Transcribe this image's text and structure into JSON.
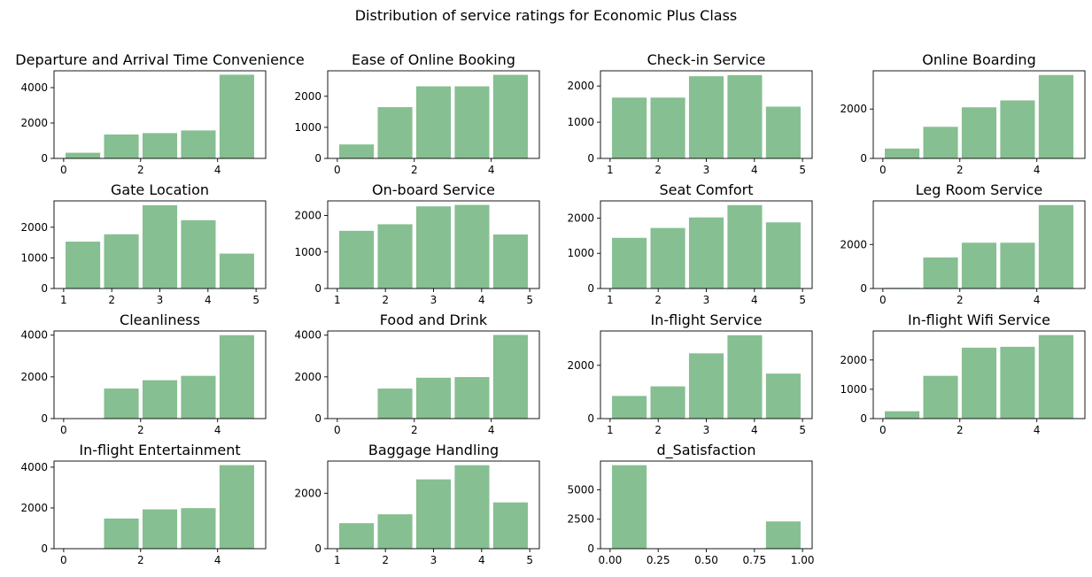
{
  "title": "Distribution of service ratings for Economic Plus Class",
  "colors": {
    "bar": "#86bf91",
    "axis": "#000000",
    "background": "#ffffff"
  },
  "chart_data": [
    {
      "type": "bar",
      "title": "Departure and Arrival Time Convenience",
      "bins": [
        [
          0,
          1
        ],
        [
          1,
          2
        ],
        [
          2,
          3
        ],
        [
          3,
          4
        ],
        [
          4,
          5
        ]
      ],
      "values": [
        320,
        1350,
        1430,
        1580,
        4730
      ],
      "xlim": [
        -0.25,
        5.25
      ],
      "ylim": [
        0,
        4950
      ],
      "xticks": [
        0,
        2,
        4
      ],
      "xtick_labels": [
        "0",
        "2",
        "4"
      ],
      "yticks": [
        0,
        2000,
        4000
      ],
      "ytick_labels": [
        "0",
        "2000",
        "4000"
      ]
    },
    {
      "type": "bar",
      "title": "Ease of Online Booking",
      "bins": [
        [
          0,
          1
        ],
        [
          1,
          2
        ],
        [
          2,
          3
        ],
        [
          3,
          4
        ],
        [
          4,
          5
        ]
      ],
      "values": [
        450,
        1650,
        2320,
        2320,
        2690
      ],
      "xlim": [
        -0.25,
        5.25
      ],
      "ylim": [
        0,
        2820
      ],
      "xticks": [
        0,
        2,
        4
      ],
      "xtick_labels": [
        "0",
        "2",
        "4"
      ],
      "yticks": [
        0,
        1000,
        2000
      ],
      "ytick_labels": [
        "0",
        "1000",
        "2000"
      ]
    },
    {
      "type": "bar",
      "title": "Check-in Service",
      "bins": [
        [
          1,
          1.8
        ],
        [
          1.8,
          2.6
        ],
        [
          2.6,
          3.4
        ],
        [
          3.4,
          4.2
        ],
        [
          4.2,
          5
        ]
      ],
      "values": [
        1680,
        1680,
        2270,
        2300,
        1430
      ],
      "xlim": [
        0.8,
        5.2
      ],
      "ylim": [
        0,
        2420
      ],
      "xticks": [
        1,
        2,
        3,
        4,
        5
      ],
      "xtick_labels": [
        "1",
        "2",
        "3",
        "4",
        "5"
      ],
      "yticks": [
        0,
        1000,
        2000
      ],
      "ytick_labels": [
        "0",
        "1000",
        "2000"
      ]
    },
    {
      "type": "bar",
      "title": "Online Boarding",
      "bins": [
        [
          0,
          1
        ],
        [
          1,
          2
        ],
        [
          2,
          3
        ],
        [
          3,
          4
        ],
        [
          4,
          5
        ]
      ],
      "values": [
        400,
        1280,
        2070,
        2350,
        3380
      ],
      "xlim": [
        -0.25,
        5.25
      ],
      "ylim": [
        0,
        3550
      ],
      "xticks": [
        0,
        2,
        4
      ],
      "xtick_labels": [
        "0",
        "2",
        "4"
      ],
      "yticks": [
        0,
        2000
      ],
      "ytick_labels": [
        "0",
        "2000"
      ]
    },
    {
      "type": "bar",
      "title": "Gate Location",
      "bins": [
        [
          1,
          1.8
        ],
        [
          1.8,
          2.6
        ],
        [
          2.6,
          3.4
        ],
        [
          3.4,
          4.2
        ],
        [
          4.2,
          5
        ]
      ],
      "values": [
        1530,
        1770,
        2720,
        2230,
        1140
      ],
      "xlim": [
        0.8,
        5.2
      ],
      "ylim": [
        0,
        2860
      ],
      "xticks": [
        1,
        2,
        3,
        4,
        5
      ],
      "xtick_labels": [
        "1",
        "2",
        "3",
        "4",
        "5"
      ],
      "yticks": [
        0,
        1000,
        2000
      ],
      "ytick_labels": [
        "0",
        "1000",
        "2000"
      ]
    },
    {
      "type": "bar",
      "title": "On-board Service",
      "bins": [
        [
          1,
          1.8
        ],
        [
          1.8,
          2.6
        ],
        [
          2.6,
          3.4
        ],
        [
          3.4,
          4.2
        ],
        [
          4.2,
          5
        ]
      ],
      "values": [
        1580,
        1760,
        2250,
        2290,
        1480
      ],
      "xlim": [
        0.8,
        5.2
      ],
      "ylim": [
        0,
        2400
      ],
      "xticks": [
        1,
        2,
        3,
        4,
        5
      ],
      "xtick_labels": [
        "1",
        "2",
        "3",
        "4",
        "5"
      ],
      "yticks": [
        0,
        1000,
        2000
      ],
      "ytick_labels": [
        "0",
        "1000",
        "2000"
      ]
    },
    {
      "type": "bar",
      "title": "Seat Comfort",
      "bins": [
        [
          1,
          1.8
        ],
        [
          1.8,
          2.6
        ],
        [
          2.6,
          3.4
        ],
        [
          3.4,
          4.2
        ],
        [
          4.2,
          5
        ]
      ],
      "values": [
        1440,
        1720,
        2020,
        2370,
        1880
      ],
      "xlim": [
        0.8,
        5.2
      ],
      "ylim": [
        0,
        2490
      ],
      "xticks": [
        1,
        2,
        3,
        4,
        5
      ],
      "xtick_labels": [
        "1",
        "2",
        "3",
        "4",
        "5"
      ],
      "yticks": [
        0,
        1000,
        2000
      ],
      "ytick_labels": [
        "0",
        "1000",
        "2000"
      ]
    },
    {
      "type": "bar",
      "title": "Leg Room Service",
      "bins": [
        [
          0,
          1
        ],
        [
          1,
          2
        ],
        [
          2,
          3
        ],
        [
          3,
          4
        ],
        [
          4,
          5
        ]
      ],
      "values": [
        30,
        1410,
        2080,
        2080,
        3790
      ],
      "xlim": [
        -0.25,
        5.25
      ],
      "ylim": [
        0,
        3980
      ],
      "xticks": [
        0,
        2,
        4
      ],
      "xtick_labels": [
        "0",
        "2",
        "4"
      ],
      "yticks": [
        0,
        2000
      ],
      "ytick_labels": [
        "0",
        "2000"
      ]
    },
    {
      "type": "bar",
      "title": "Cleanliness",
      "bins": [
        [
          0,
          1
        ],
        [
          1,
          2
        ],
        [
          2,
          3
        ],
        [
          3,
          4
        ],
        [
          4,
          5
        ]
      ],
      "values": [
        0,
        1440,
        1840,
        2050,
        4000
      ],
      "xlim": [
        -0.25,
        5.25
      ],
      "ylim": [
        0,
        4200
      ],
      "xticks": [
        0,
        2,
        4
      ],
      "xtick_labels": [
        "0",
        "2",
        "4"
      ],
      "yticks": [
        0,
        2000,
        4000
      ],
      "ytick_labels": [
        "0",
        "2000",
        "4000"
      ]
    },
    {
      "type": "bar",
      "title": "Food and Drink",
      "bins": [
        [
          0,
          1
        ],
        [
          1,
          2
        ],
        [
          2,
          3
        ],
        [
          3,
          4
        ],
        [
          4,
          5
        ]
      ],
      "values": [
        0,
        1440,
        1960,
        1990,
        4010
      ],
      "xlim": [
        -0.25,
        5.25
      ],
      "ylim": [
        0,
        4200
      ],
      "xticks": [
        0,
        2,
        4
      ],
      "xtick_labels": [
        "0",
        "2",
        "4"
      ],
      "yticks": [
        0,
        2000,
        4000
      ],
      "ytick_labels": [
        "0",
        "2000",
        "4000"
      ]
    },
    {
      "type": "bar",
      "title": "In-flight Service",
      "bins": [
        [
          1,
          1.8
        ],
        [
          1.8,
          2.6
        ],
        [
          2.6,
          3.4
        ],
        [
          3.4,
          4.2
        ],
        [
          4.2,
          5
        ]
      ],
      "values": [
        850,
        1210,
        2450,
        3130,
        1690
      ],
      "xlim": [
        0.8,
        5.2
      ],
      "ylim": [
        0,
        3290
      ],
      "xticks": [
        1,
        2,
        3,
        4,
        5
      ],
      "xtick_labels": [
        "1",
        "2",
        "3",
        "4",
        "5"
      ],
      "yticks": [
        0,
        2000
      ],
      "ytick_labels": [
        "0",
        "2000"
      ]
    },
    {
      "type": "bar",
      "title": "In-flight Wifi Service",
      "bins": [
        [
          0,
          1
        ],
        [
          1,
          2
        ],
        [
          2,
          3
        ],
        [
          3,
          4
        ],
        [
          4,
          5
        ]
      ],
      "values": [
        250,
        1460,
        2420,
        2450,
        2850
      ],
      "xlim": [
        -0.25,
        5.25
      ],
      "ylim": [
        0,
        2990
      ],
      "xticks": [
        0,
        2,
        4
      ],
      "xtick_labels": [
        "0",
        "2",
        "4"
      ],
      "yticks": [
        0,
        1000,
        2000
      ],
      "ytick_labels": [
        "0",
        "1000",
        "2000"
      ]
    },
    {
      "type": "bar",
      "title": "In-flight Entertainment",
      "bins": [
        [
          0,
          1
        ],
        [
          1,
          2
        ],
        [
          2,
          3
        ],
        [
          3,
          4
        ],
        [
          4,
          5
        ]
      ],
      "values": [
        0,
        1480,
        1930,
        1990,
        4100
      ],
      "xlim": [
        -0.25,
        5.25
      ],
      "ylim": [
        0,
        4300
      ],
      "xticks": [
        0,
        2,
        4
      ],
      "xtick_labels": [
        "0",
        "2",
        "4"
      ],
      "yticks": [
        0,
        2000,
        4000
      ],
      "ytick_labels": [
        "0",
        "2000",
        "4000"
      ]
    },
    {
      "type": "bar",
      "title": "Baggage Handling",
      "bins": [
        [
          1,
          1.8
        ],
        [
          1.8,
          2.6
        ],
        [
          2.6,
          3.4
        ],
        [
          3.4,
          4.2
        ],
        [
          4.2,
          5
        ]
      ],
      "values": [
        920,
        1240,
        2500,
        3010,
        1670
      ],
      "xlim": [
        0.8,
        5.2
      ],
      "ylim": [
        0,
        3160
      ],
      "xticks": [
        1,
        2,
        3,
        4,
        5
      ],
      "xtick_labels": [
        "1",
        "2",
        "3",
        "4",
        "5"
      ],
      "yticks": [
        0,
        2000
      ],
      "ytick_labels": [
        "0",
        "2000"
      ]
    },
    {
      "type": "bar",
      "title": "d_Satisfaction",
      "bins": [
        [
          0,
          0.2
        ],
        [
          0.8,
          1.0
        ]
      ],
      "values": [
        7080,
        2310
      ],
      "xlim": [
        -0.05,
        1.05
      ],
      "ylim": [
        0,
        7430
      ],
      "xticks": [
        0,
        0.25,
        0.5,
        0.75,
        1.0
      ],
      "xtick_labels": [
        "0.00",
        "0.25",
        "0.50",
        "0.75",
        "1.00"
      ],
      "yticks": [
        0,
        2500,
        5000
      ],
      "ytick_labels": [
        "0",
        "2500",
        "5000"
      ]
    }
  ]
}
